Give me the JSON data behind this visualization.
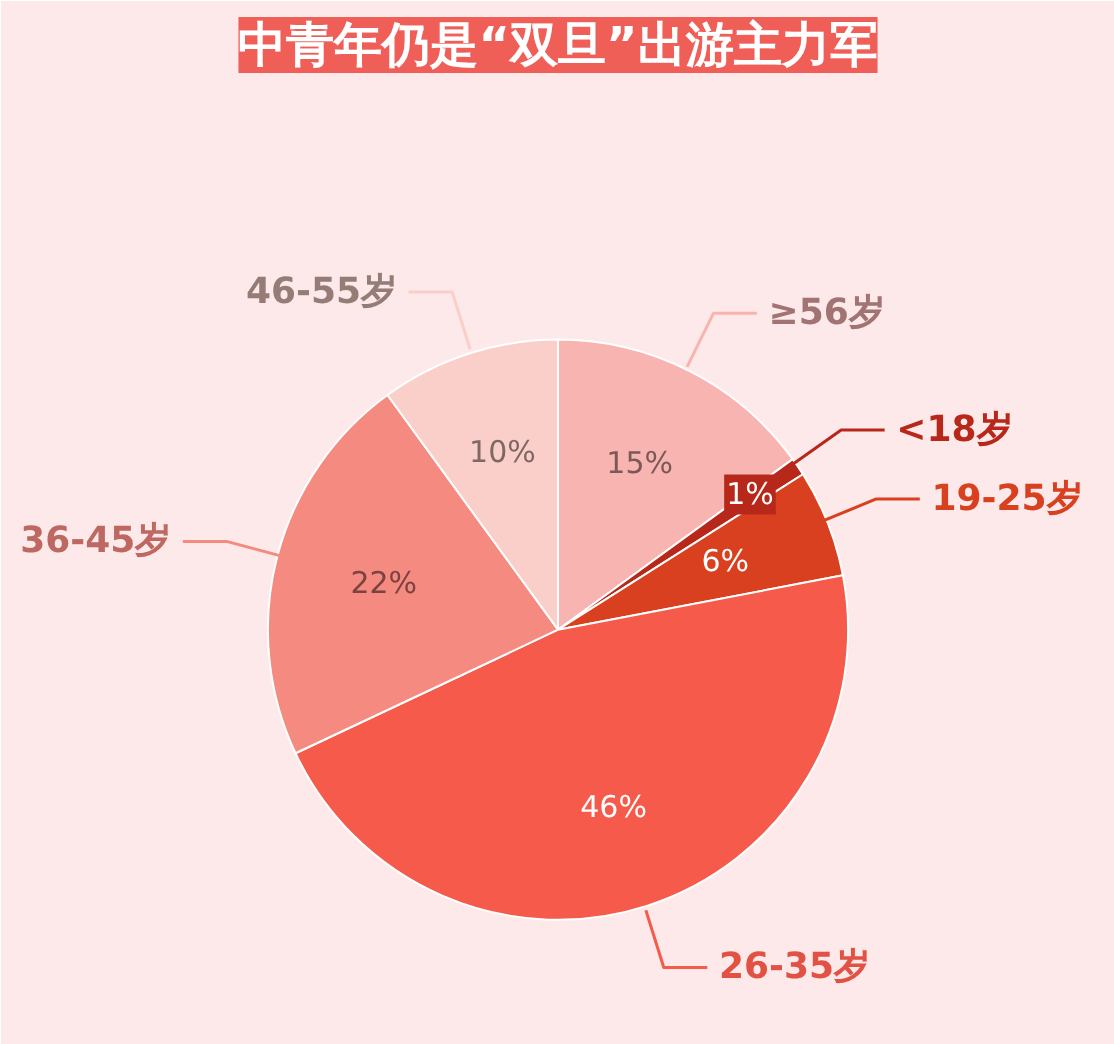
{
  "chart_data": {
    "type": "pie",
    "title": "中青年仍是“双旦”出游主力军",
    "categories": [
      "≥56岁",
      "<18岁",
      "19-25岁",
      "26-35岁",
      "36-45岁",
      "46-55岁"
    ],
    "values": [
      15,
      1,
      6,
      46,
      22,
      10
    ],
    "colors": [
      "#f8b4b0",
      "#b8281a",
      "#d8401f",
      "#f55a4a",
      "#f48a80",
      "#fbcfc9"
    ],
    "value_labels": [
      "15%",
      "1%",
      "6%",
      "46%",
      "22%",
      "10%"
    ]
  }
}
